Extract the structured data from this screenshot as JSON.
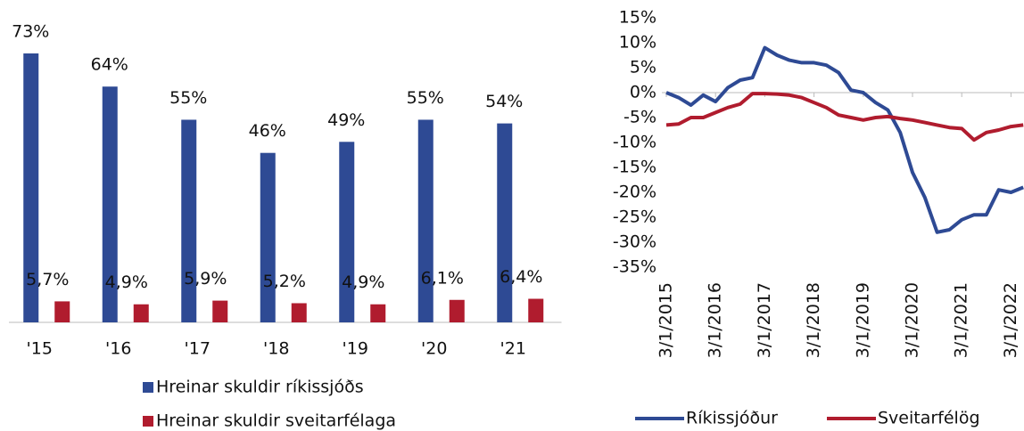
{
  "chart_data": [
    {
      "type": "bar",
      "categories": [
        "'15",
        "'16",
        "'17",
        "'18",
        "'19",
        "'20",
        "'21"
      ],
      "series": [
        {
          "name": "Hreinar skuldir ríkissjóðs",
          "color": "#2e4a94",
          "values": [
            73,
            64,
            55,
            46,
            49,
            55,
            54
          ],
          "value_labels": [
            "73%",
            "64%",
            "55%",
            "46%",
            "49%",
            "55%",
            "54%"
          ]
        },
        {
          "name": "Hreinar skuldir sveitarfélaga",
          "color": "#b01c2e",
          "values": [
            5.7,
            4.9,
            5.9,
            5.2,
            4.9,
            6.1,
            6.4
          ],
          "value_labels": [
            "5,7%",
            "4,9%",
            "5,9%",
            "5,2%",
            "4,9%",
            "6,1%",
            "6,4%"
          ]
        }
      ]
    },
    {
      "type": "line",
      "categories": [
        "3/1/2015",
        null,
        null,
        null,
        "3/1/2016",
        null,
        null,
        null,
        "3/1/2017",
        null,
        null,
        null,
        "3/1/2018",
        null,
        null,
        null,
        "3/1/2019",
        null,
        null,
        null,
        "3/1/2020",
        null,
        null,
        null,
        "3/1/2021",
        null,
        null,
        null,
        "3/1/2022",
        null
      ],
      "series": [
        {
          "name": "Ríkissjóður",
          "color": "#2e4a94",
          "values": [
            0,
            -1,
            -2.5,
            -0.5,
            -1.8,
            1,
            2.5,
            3,
            9,
            7.5,
            6.5,
            6,
            6,
            5.5,
            4,
            0.5,
            0,
            -2,
            -3.5,
            -8,
            -16,
            -21,
            -28,
            -27.5,
            -25.5,
            -24.5,
            -24.5,
            -19.5,
            -20,
            -19
          ]
        },
        {
          "name": "Sveitarfélög",
          "color": "#b01c2e",
          "values": [
            -6.5,
            -6.3,
            -5,
            -5,
            -4,
            -3,
            -2.3,
            -0.2,
            -0.2,
            -0.3,
            -0.5,
            -1,
            -2,
            -3,
            -4.5,
            -5,
            -5.5,
            -5,
            -4.8,
            -5.2,
            -5.5,
            -6,
            -6.5,
            -7,
            -7.2,
            -9.5,
            -8,
            -7.5,
            -6.8,
            -6.5
          ]
        }
      ],
      "ylim": [
        -35,
        15
      ],
      "yticks": [
        {
          "value": -35,
          "label": "-35%"
        },
        {
          "value": -30,
          "label": "-30%"
        },
        {
          "value": -25,
          "label": "-25%"
        },
        {
          "value": -20,
          "label": "-20%"
        },
        {
          "value": -15,
          "label": "-15%"
        },
        {
          "value": -10,
          "label": "-10%"
        },
        {
          "value": -5,
          "label": "-5%"
        },
        {
          "value": 0,
          "label": "0%"
        },
        {
          "value": 5,
          "label": "5%"
        },
        {
          "value": 10,
          "label": "10%"
        },
        {
          "value": 15,
          "label": "15%"
        }
      ]
    }
  ]
}
